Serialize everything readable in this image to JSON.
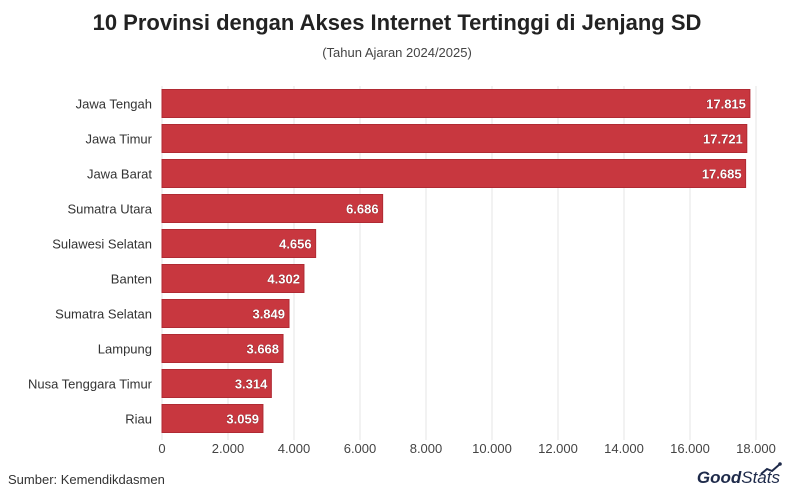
{
  "header": {
    "title": "10 Provinsi dengan Akses Internet Tertinggi di Jenjang SD",
    "subtitle": "(Tahun Ajaran 2024/2025)"
  },
  "footer": {
    "source": "Sumber: Kemendikdasmen",
    "logo_good": "Good",
    "logo_stats": "Stats"
  },
  "colors": {
    "bar": "#c8373f",
    "bar_edge": "#b02a33",
    "grid": "#e6e6e6",
    "label_text": "#ffffff",
    "tick_text": "#444444"
  },
  "chart_data": {
    "type": "bar",
    "orientation": "horizontal",
    "categories": [
      "Jawa Tengah",
      "Jawa Timur",
      "Jawa Barat",
      "Sumatra Utara",
      "Sulawesi Selatan",
      "Banten",
      "Sumatra Selatan",
      "Lampung",
      "Nusa Tenggara Timur",
      "Riau"
    ],
    "values": [
      17815,
      17721,
      17685,
      6686,
      4656,
      4302,
      3849,
      3668,
      3314,
      3059
    ],
    "value_labels": [
      "17.815",
      "17.721",
      "17.685",
      "6.686",
      "4.656",
      "4.302",
      "3.849",
      "3.668",
      "3.314",
      "3.059"
    ],
    "xlim": [
      0,
      18000
    ],
    "xticks": [
      0,
      2000,
      4000,
      6000,
      8000,
      10000,
      12000,
      14000,
      16000,
      18000
    ],
    "xtick_labels": [
      "0",
      "2.000",
      "4.000",
      "6.000",
      "8.000",
      "10.000",
      "12.000",
      "14.000",
      "16.000",
      "18.000"
    ],
    "title": "10 Provinsi dengan Akses Internet Tertinggi di Jenjang SD",
    "subtitle": "(Tahun Ajaran 2024/2025)",
    "xlabel": "",
    "ylabel": "",
    "grid": true,
    "legend": false
  }
}
